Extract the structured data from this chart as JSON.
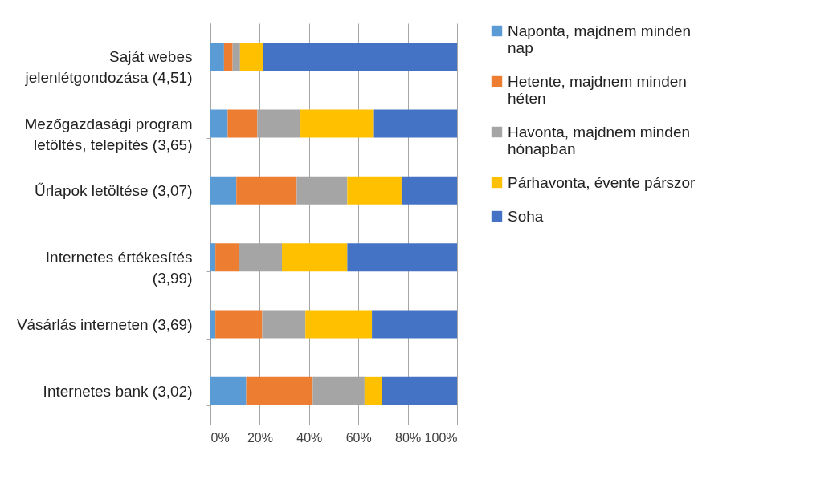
{
  "chart_data": {
    "type": "bar",
    "orientation": "horizontal",
    "stacked": true,
    "categories": [
      "Saját webes jelenlétgondozása (4,51)",
      "Mezőgazdasági program letöltés, telepítés (3,65)",
      "Űrlapok letöltése (3,07)",
      "Internetes értékesítés (3,99)",
      "Vásárlás interneten (3,69)",
      "Internetes bank (3,02)"
    ],
    "series": [
      {
        "name": "Naponta, majdnem minden nap",
        "color": "#5b9bd5",
        "values": [
          5.5,
          7,
          10.5,
          2,
          2,
          14.5
        ]
      },
      {
        "name": "Hetente, majdnem minden héten",
        "color": "#ed7d31",
        "values": [
          3.5,
          12,
          24.5,
          9.5,
          19,
          27
        ]
      },
      {
        "name": "Havonta, majdnem minden hónapban",
        "color": "#a5a5a5",
        "values": [
          3,
          17.5,
          20.5,
          17.5,
          17.5,
          21
        ]
      },
      {
        "name": "Párhavonta, évente párszor",
        "color": "#ffc000",
        "values": [
          9.5,
          29.5,
          22,
          26.5,
          27,
          7
        ]
      },
      {
        "name": "Soha",
        "color": "#4472c4",
        "values": [
          78.5,
          34,
          22.5,
          44.5,
          34.5,
          30.5
        ]
      }
    ],
    "xlim": [
      0,
      100
    ],
    "xticks": [
      {
        "value": 0,
        "label": "0%"
      },
      {
        "value": 20,
        "label": "20%"
      },
      {
        "value": 40,
        "label": "40%"
      },
      {
        "value": 60,
        "label": "60%"
      },
      {
        "value": 80,
        "label": "80%"
      },
      {
        "value": 100,
        "label": "100%"
      }
    ],
    "grid": "x",
    "legend": "right"
  }
}
